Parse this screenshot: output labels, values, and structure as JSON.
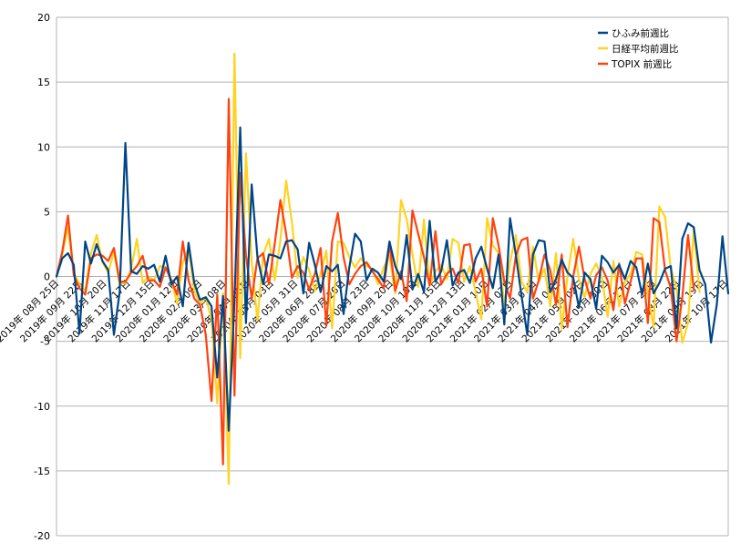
{
  "chart_data": {
    "type": "line",
    "ylim": [
      -20,
      20
    ],
    "yticks": [
      -20,
      -15,
      -10,
      -5,
      0,
      5,
      10,
      15,
      20
    ],
    "grid": true,
    "legend_position": "top-right",
    "x_tick_labels": [
      "2019年 08月 25日",
      "2019年 09月 22日",
      "2019年 10月 20日",
      "2019年 11月 17日",
      "2019年 12月 15日",
      "2020年 01月 12日",
      "2020年 02月 09日",
      "2020年 03月 08日",
      "2020年 04月 05日",
      "2020年 05月 03日",
      "2020年 05月 31日",
      "2020年 06月 28日",
      "2020年 07月 26日",
      "2020年 08月 23日",
      "2020年 09月 20日",
      "2020年 10月 18日",
      "2020年 11月 15日",
      "2020年 12月 13日",
      "2021年 01月 10日",
      "2021年 02月 07日",
      "2021年 03月 07日",
      "2021年 04月 04日",
      "2021年 05月 02日",
      "2021年 05月 30日",
      "2021年 06月 27日",
      "2021年 07月 25日",
      "2021年 08月 22日",
      "2021年 09月 19日",
      "2021年 10月 17日"
    ],
    "series": [
      {
        "name": "ひふみ前週比",
        "color": "#004586",
        "values": [
          0,
          1.4,
          1.8,
          0.9,
          -4.4,
          2.7,
          1.0,
          2.5,
          1.2,
          0.5,
          -4.5,
          -1.2,
          10.3,
          0.4,
          0.2,
          0.8,
          0.6,
          0.9,
          -0.4,
          1.6,
          -0.6,
          0.0,
          -2.3,
          2.6,
          -0.5,
          -1.8,
          -1.6,
          -2.3,
          -7.8,
          -1.5,
          -11.9,
          -1.8,
          11.5,
          -3.6,
          7.1,
          1.5,
          -0.6,
          1.7,
          1.6,
          1.4,
          2.7,
          2.8,
          2.1,
          -1.3,
          2.6,
          0.9,
          -1.2,
          0.8,
          0.4,
          0.9,
          -2.9,
          0.7,
          3.3,
          2.7,
          -0.3,
          0.6,
          0.3,
          -0.4,
          2.7,
          0.8,
          -0.2,
          3.2,
          -1.0,
          0.2,
          -1.2,
          4.3,
          -0.4,
          0.4,
          2.8,
          -0.7,
          0.3,
          0.5,
          -0.5,
          1.4,
          2.3,
          0.6,
          -0.9,
          1.7,
          -3.7,
          4.5,
          1.7,
          -1.5,
          -4.5,
          1.7,
          2.8,
          2.7,
          -1.2,
          -0.2,
          1.3,
          0.3,
          -0.1,
          -2.4,
          0.3,
          -0.2,
          -2.5,
          1.6,
          1.1,
          0.3,
          0.9,
          -0.2,
          1.2,
          0.7,
          -1.4,
          1.0,
          -1.3,
          -0.5,
          0.6,
          0.8,
          -4.0,
          2.9,
          4.1,
          3.8,
          0.5,
          -0.6,
          -5.1,
          -2.2,
          3.1,
          -1.3
        ]
      },
      {
        "name": "日経平均前週比",
        "color": "#ffd320",
        "values": [
          0,
          1.7,
          3.8,
          0.3,
          -0.6,
          -1.1,
          1.8,
          3.2,
          1.1,
          0.3,
          1.9,
          -0.6,
          -0.5,
          0.6,
          2.9,
          -0.5,
          0.0,
          -0.3,
          0.8,
          0.7,
          -0.2,
          -2.1,
          1.1,
          2.2,
          -1.1,
          -2.1,
          -1.6,
          -3.3,
          -9.8,
          -1.3,
          -16.0,
          17.2,
          -6.3,
          9.5,
          1.1,
          -3.4,
          1.7,
          2.9,
          -0.3,
          2.8,
          7.4,
          4.2,
          -0.1,
          1.5,
          0.5,
          -1.1,
          0.2,
          2.0,
          -4.0,
          2.7,
          2.6,
          1.5,
          0.7,
          1.4,
          0.8,
          0.6,
          -0.6,
          0.7,
          1.6,
          -1.3,
          5.9,
          4.4,
          1.7,
          -0.8,
          4.4,
          -0.7,
          0.4,
          0.9,
          -0.2,
          2.9,
          2.6,
          -0.4,
          0.8,
          -1.2,
          -3.3,
          4.5,
          2.4,
          1.8,
          -2.2,
          1.1,
          3.2,
          -0.4,
          -1.2,
          2.3,
          -0.4,
          0.6,
          -2.3,
          1.8,
          -4.0,
          0.0,
          2.9,
          -0.2,
          -1.6,
          0.2,
          1.0,
          -0.1,
          -3.1,
          1.2,
          -2.3,
          -0.4,
          0.2,
          1.9,
          1.7,
          -1.4,
          -3.9,
          5.4,
          4.6,
          0.6,
          -0.9,
          -5.1,
          -3.6,
          3.7,
          -1.2
        ]
      },
      {
        "name": "TOPIX 前週比",
        "color": "#ff420e",
        "values": [
          0,
          1.9,
          4.7,
          0.1,
          -0.9,
          -1.4,
          1.4,
          1.7,
          1.6,
          1.2,
          2.2,
          -0.4,
          -0.4,
          0.3,
          0.8,
          1.6,
          -0.3,
          -0.3,
          -0.8,
          0.7,
          -0.3,
          -1.4,
          2.7,
          -0.3,
          -1.7,
          -2.2,
          -4.5,
          -9.6,
          -1.4,
          -14.5,
          13.7,
          -9.2,
          8.0,
          1.6,
          -1.7,
          1.4,
          1.8,
          -0.6,
          2.5,
          5.9,
          3.3,
          -0.1,
          0.8,
          0.3,
          -1.0,
          0.2,
          2.2,
          -3.8,
          2.7,
          4.9,
          1.5,
          -0.6,
          0.2,
          0.8,
          1.1,
          0.4,
          -0.2,
          -0.9,
          2.5,
          -1.1,
          0.4,
          -1.9,
          5.1,
          3.3,
          1.5,
          -0.7,
          3.5,
          -0.6,
          0.2,
          0.6,
          -0.5,
          2.4,
          2.5,
          -0.4,
          0.6,
          -2.3,
          4.5,
          2.4,
          -0.4,
          -1.7,
          1.6,
          2.8,
          3.0,
          -1.7,
          -0.3,
          1.7,
          0.5,
          -2.2,
          1.7,
          -3.9,
          0.0,
          2.3,
          -0.2,
          -1.7,
          0.1,
          0.7,
          -0.3,
          -2.6,
          1.0,
          -2.1,
          -0.4,
          1.4,
          1.4,
          -3.6,
          4.5,
          4.2,
          0.5,
          -0.9,
          -5.0,
          -1.6,
          3.2,
          -1.0
        ]
      }
    ]
  }
}
